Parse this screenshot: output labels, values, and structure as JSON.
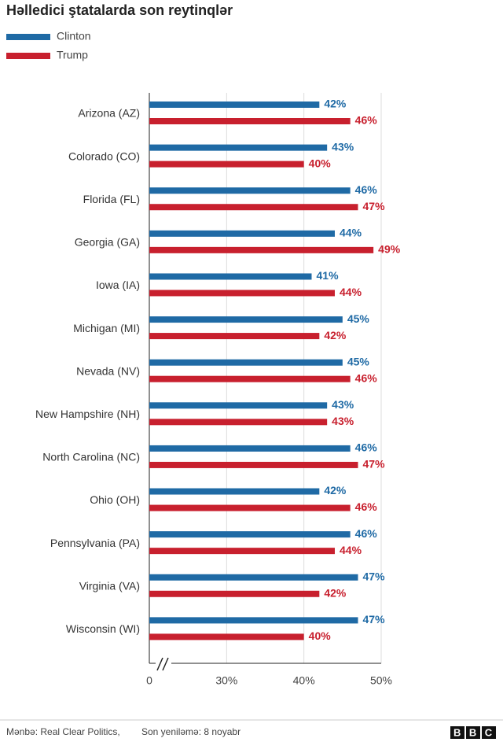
{
  "chart_data": {
    "type": "hbar",
    "title": "Həlledici ştatalarda son reytinqlər",
    "categories": [
      "Arizona (AZ)",
      "Colorado (CO)",
      "Florida (FL)",
      "Georgia (GA)",
      "Iowa (IA)",
      "Michigan (MI)",
      "Nevada (NV)",
      "New Hampshire (NH)",
      "North Carolina (NC)",
      "Ohio (OH)",
      "Pennsylvania (PA)",
      "Virginia (VA)",
      "Wisconsin (WI)"
    ],
    "series": [
      {
        "name": "Clinton",
        "color": "#1f6aa5",
        "values": [
          42,
          43,
          46,
          44,
          41,
          45,
          45,
          43,
          46,
          42,
          46,
          47,
          47
        ],
        "value_labels": [
          "42%",
          "43%",
          "46%",
          "44%",
          "41%",
          "45%",
          "45%",
          "43%",
          "46%",
          "42%",
          "46%",
          "47%",
          "47%"
        ]
      },
      {
        "name": "Trump",
        "color": "#c8202e",
        "values": [
          46,
          40,
          47,
          49,
          44,
          42,
          46,
          43,
          47,
          46,
          44,
          42,
          40
        ],
        "value_labels": [
          "46%",
          "40%",
          "47%",
          "49%",
          "44%",
          "42%",
          "46%",
          "43%",
          "47%",
          "46%",
          "44%",
          "42%",
          "40%"
        ]
      }
    ],
    "xlim": [
      0,
      50
    ],
    "axis_break": [
      0,
      20
    ],
    "xticks": [
      0,
      {
        "value": 30,
        "label": "30%"
      },
      {
        "value": 40,
        "label": "40%"
      },
      {
        "value": 50,
        "label": "50%"
      }
    ],
    "grid": true,
    "source": "Mənbə: Real Clear Politics,",
    "updated": "Son yeniləmə: 8 noyabr",
    "logo": "BBC"
  }
}
